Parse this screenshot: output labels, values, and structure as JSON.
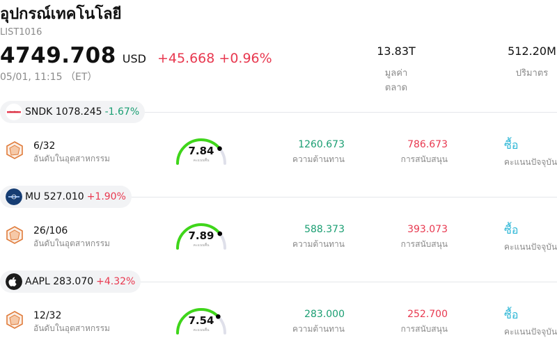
{
  "header": {
    "title": "อุปกรณ์เทคโนโลยี",
    "code": "LIST1016",
    "price": "4749.708",
    "currency": "USD",
    "change": "+45.668 +0.96%",
    "time": "05/01, 11:15 （ET）",
    "market_cap_value": "13.83T",
    "market_cap_label": "มูลค่าตลาด",
    "volume_value": "512.20M",
    "volume_label": "ปริมาตร"
  },
  "colors": {
    "up": "#e8384f",
    "down": "#1a9e72",
    "resistance": "#1a9e72",
    "support": "#e8384f",
    "action": "#2bb6d6",
    "gauge_fill": "#3fd61a",
    "gauge_track": "#dfe0ea",
    "rank_icon": "#e07b3a"
  },
  "stocks": [
    {
      "ticker": "SNDK",
      "price": "1078.245",
      "change": "-1.67%",
      "direction": "down",
      "logo_icon": "sandisk-logo-icon",
      "rank": "6/32",
      "rank_label": "อันดับในอุตสาหกรรม",
      "score": "7.84",
      "score_fraction": 0.784,
      "score_label": "คะแนนพื้น",
      "resistance": "1260.673",
      "resistance_label": "ความต้านทาน",
      "support": "786.673",
      "support_label": "การสนับสนุน",
      "action": "ซื้อ",
      "action_label": "คะแนนปัจจุบัน"
    },
    {
      "ticker": "MU",
      "price": "527.010",
      "change": "+1.90%",
      "direction": "up",
      "logo_icon": "micron-logo-icon",
      "rank": "26/106",
      "rank_label": "อันดับในอุตสาหกรรม",
      "score": "7.89",
      "score_fraction": 0.789,
      "score_label": "คะแนนพื้น",
      "resistance": "588.373",
      "resistance_label": "ความต้านทาน",
      "support": "393.073",
      "support_label": "การสนับสนุน",
      "action": "ซื้อ",
      "action_label": "คะแนนปัจจุบัน"
    },
    {
      "ticker": "AAPL",
      "price": "283.070",
      "change": "+4.32%",
      "direction": "up",
      "logo_icon": "apple-logo-icon",
      "rank": "12/32",
      "rank_label": "อันดับในอุตสาหกรรม",
      "score": "7.54",
      "score_fraction": 0.754,
      "score_label": "คะแนนพื้น",
      "resistance": "283.000",
      "resistance_label": "ความต้านทาน",
      "support": "252.700",
      "support_label": "การสนับสนุน",
      "action": "ซื้อ",
      "action_label": "คะแนนปัจจุบัน"
    }
  ]
}
